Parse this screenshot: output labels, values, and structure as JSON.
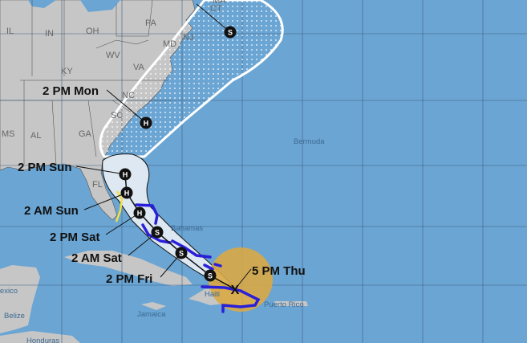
{
  "map": {
    "colors": {
      "ocean": "#6ba5d3",
      "land": "#c6c6c6",
      "cone_inner": "#dde8f2",
      "warning": "#2a1fd8",
      "watch": "#f0e040",
      "wind_field": "#d9a844"
    },
    "states": [
      "IL",
      "IN",
      "OH",
      "PA",
      "WV",
      "VA",
      "KY",
      "NC",
      "SC",
      "GA",
      "AL",
      "MS",
      "FL",
      "NJ",
      "MD",
      "CT",
      "MA"
    ],
    "places": [
      "Bermuda",
      "Bahamas",
      "Jamaica",
      "Haiti",
      "Puerto Rico",
      "Mexico",
      "Belize",
      "Honduras"
    ],
    "track": [
      {
        "time": "5 PM Thu",
        "marker": "X"
      },
      {
        "time": "2 PM Fri",
        "marker": "S"
      },
      {
        "time": "2 AM Sat",
        "marker": "S"
      },
      {
        "time": "2 PM Sat",
        "marker": "H"
      },
      {
        "time": "2 AM Sun",
        "marker": "H"
      },
      {
        "time": "2 PM Sun",
        "marker": "H"
      },
      {
        "time": "2 PM Mon",
        "marker": "H"
      },
      {
        "time": "",
        "marker": "S"
      }
    ]
  }
}
